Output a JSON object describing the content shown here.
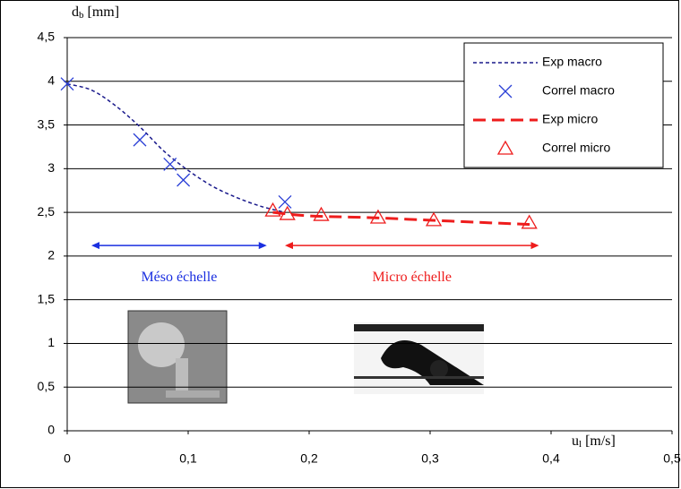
{
  "chart_data": {
    "type": "line",
    "x_label": {
      "symbol": "u",
      "subscript": "l",
      "unit": "[m/s]"
    },
    "y_label": {
      "symbol": "d",
      "subscript": "b",
      "unit": "[mm]"
    },
    "xlim": [
      0,
      0.5
    ],
    "ylim": [
      0,
      4.5
    ],
    "xticks": [
      0,
      {
        "value": 0.1,
        "label": "0,1"
      },
      {
        "value": 0.2,
        "label": "0,2"
      },
      {
        "value": 0.3,
        "label": "0,3"
      },
      {
        "value": 0.4,
        "label": "0,4"
      },
      {
        "value": 0.5,
        "label": "0,5"
      }
    ],
    "yticks": [
      0,
      {
        "value": 0.5,
        "label": "0,5"
      },
      1,
      {
        "value": 1.5,
        "label": "1,5"
      },
      2,
      {
        "value": 2.5,
        "label": "2,5"
      },
      3,
      {
        "value": 3.5,
        "label": "3,5"
      },
      4,
      {
        "value": 4.5,
        "label": "4,5"
      }
    ],
    "grid": true,
    "legend": "top-right",
    "series": [
      {
        "name": "Exp macro",
        "color": "#1a1a8c",
        "kind": "line",
        "dash": "4 3",
        "width": 1.5,
        "x": [
          0,
          0.02,
          0.04,
          0.06,
          0.08,
          0.1,
          0.12,
          0.14,
          0.16,
          0.18
        ],
        "values": [
          3.97,
          3.9,
          3.72,
          3.48,
          3.2,
          2.98,
          2.8,
          2.67,
          2.57,
          2.5
        ]
      },
      {
        "name": "Correl macro",
        "color": "#2a3fd6",
        "kind": "scatter",
        "marker": "x",
        "x": [
          0,
          0.06,
          0.085,
          0.096,
          0.18
        ],
        "values": [
          3.97,
          3.33,
          3.05,
          2.87,
          2.62
        ]
      },
      {
        "name": "Exp micro",
        "color": "#ee1c1c",
        "kind": "line",
        "dash": "14 7",
        "width": 3,
        "x": [
          0.17,
          0.2,
          0.25,
          0.3,
          0.35,
          0.385
        ],
        "values": [
          2.5,
          2.46,
          2.44,
          2.41,
          2.38,
          2.36
        ]
      },
      {
        "name": "Correl micro",
        "color": "#ee1c1c",
        "kind": "scatter",
        "marker": "triangle",
        "x": [
          0.17,
          0.182,
          0.21,
          0.257,
          0.303,
          0.382
        ],
        "values": [
          2.52,
          2.48,
          2.47,
          2.44,
          2.41,
          2.38
        ]
      }
    ],
    "annotations": [
      {
        "text": "Méso échelle",
        "color": "#1a2fe0",
        "x_from": 0.02,
        "x_to": 0.165,
        "y": 2.12
      },
      {
        "text": "Micro échelle",
        "color": "#ee1c1c",
        "x_from": 0.18,
        "x_to": 0.39,
        "y": 2.12
      }
    ]
  }
}
